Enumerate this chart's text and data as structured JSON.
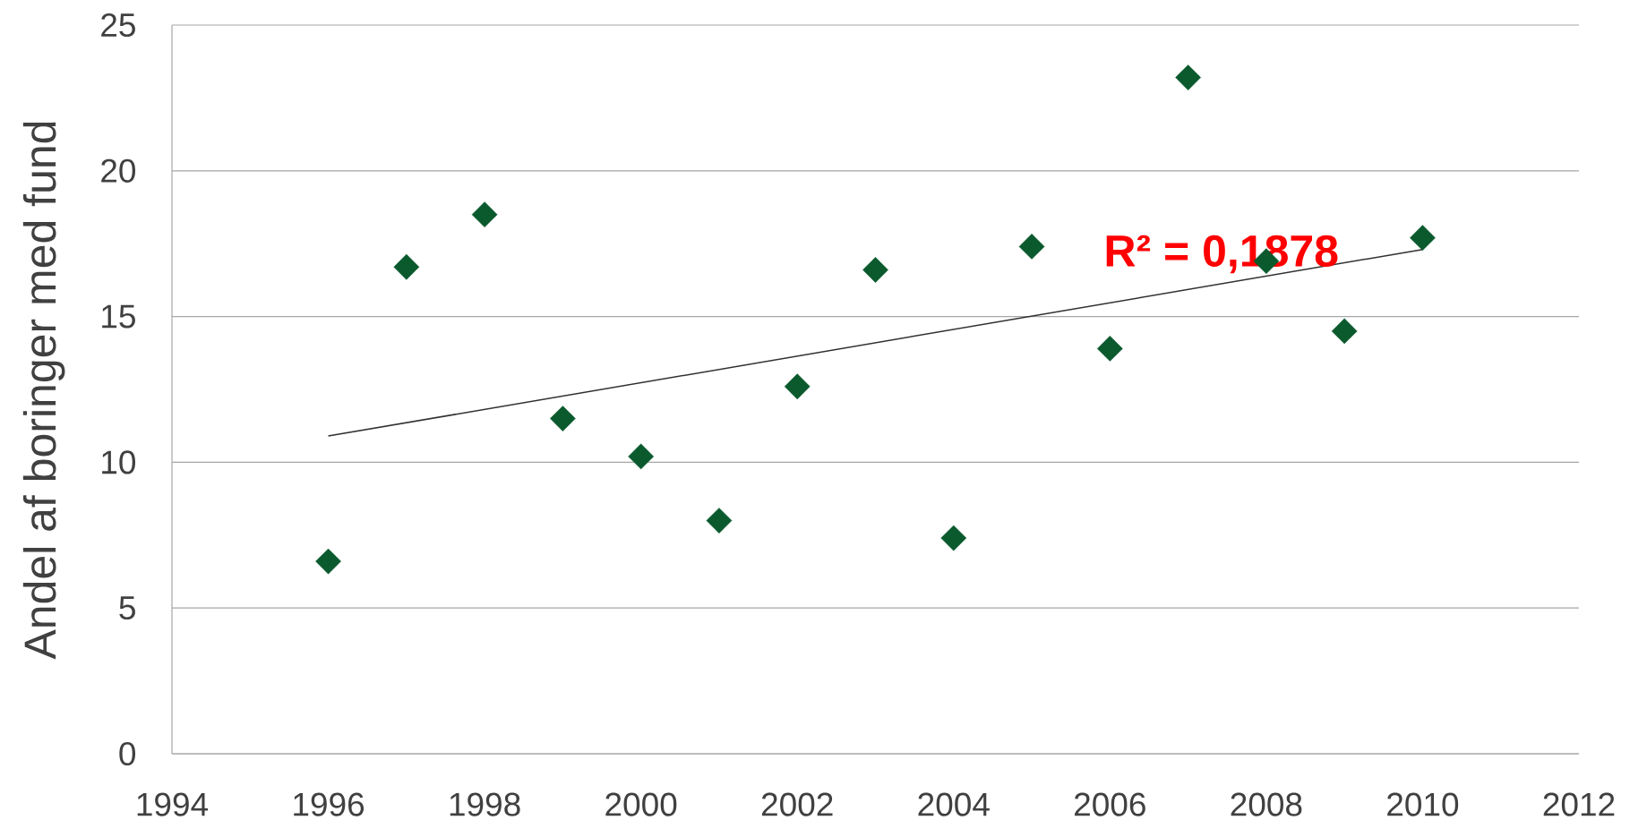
{
  "chart_data": {
    "type": "scatter",
    "ylabel": "Andel af boringer med fund",
    "xlim": [
      1994,
      2012
    ],
    "xticks": [
      1994,
      1996,
      1998,
      2000,
      2002,
      2004,
      2006,
      2008,
      2010,
      2012
    ],
    "ylim": [
      0,
      25
    ],
    "yticks": [
      0,
      5,
      10,
      15,
      20,
      25
    ],
    "grid": "y",
    "series": [
      {
        "color": "#0b5a2e",
        "marker": "diamond",
        "x": [
          1996,
          1997,
          1998,
          1999,
          2000,
          2001,
          2002,
          2003,
          2004,
          2005,
          2006,
          2007,
          2008,
          2009,
          2010
        ],
        "values": [
          6.6,
          16.7,
          18.5,
          11.5,
          10.2,
          8.0,
          12.6,
          16.6,
          7.4,
          17.4,
          13.9,
          23.2,
          16.9,
          14.5,
          17.7
        ]
      },
      {
        "type": "line",
        "color": "#303030",
        "marker": "none",
        "line_style": "solid",
        "x": [
          1996,
          2010
        ],
        "values": [
          10.9,
          17.3
        ]
      }
    ],
    "annotations": [
      "R² = 0,1878"
    ]
  }
}
